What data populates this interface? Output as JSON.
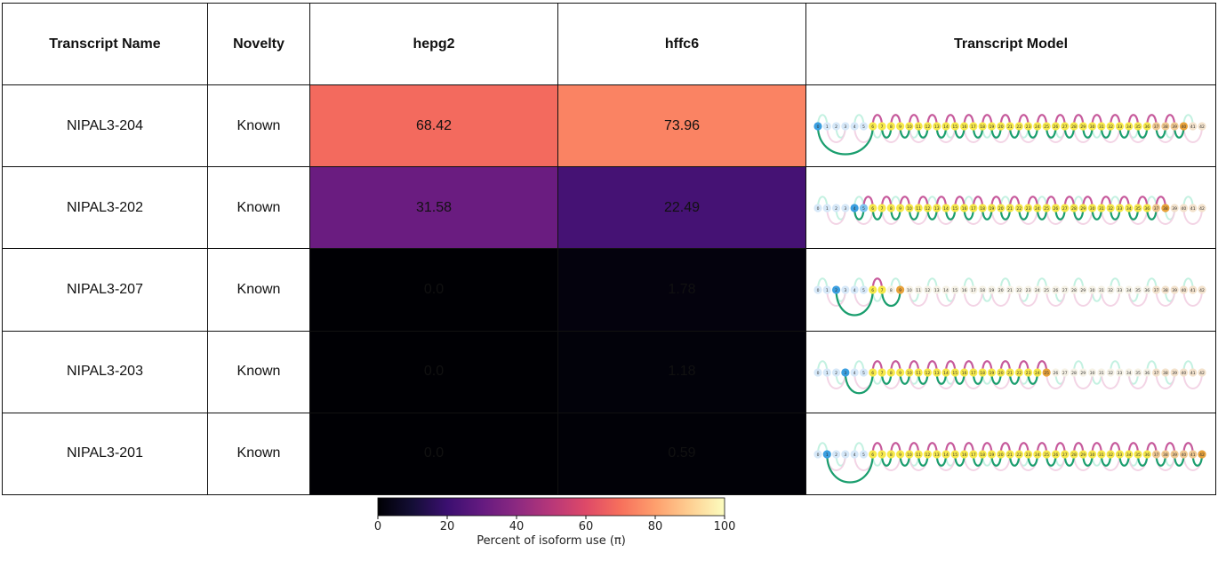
{
  "table": {
    "headers": [
      "Transcript Name",
      "Novelty",
      "hepg2",
      "hffc6",
      "Transcript Model"
    ]
  },
  "chart_data": {
    "type": "heatmap",
    "columns": [
      "hepg2",
      "hffc6"
    ],
    "rows": [
      {
        "transcript": "NIPAL3-204",
        "novelty": "Known",
        "values": [
          68.42,
          73.96
        ],
        "labels": [
          "68.42",
          "73.96"
        ]
      },
      {
        "transcript": "NIPAL3-202",
        "novelty": "Known",
        "values": [
          31.58,
          22.49
        ],
        "labels": [
          "31.58",
          "22.49"
        ]
      },
      {
        "transcript": "NIPAL3-207",
        "novelty": "Known",
        "values": [
          0.0,
          1.78
        ],
        "labels": [
          "0.0",
          "1.78"
        ]
      },
      {
        "transcript": "NIPAL3-203",
        "novelty": "Known",
        "values": [
          0.0,
          1.18
        ],
        "labels": [
          "0.0",
          "1.18"
        ]
      },
      {
        "transcript": "NIPAL3-201",
        "novelty": "Known",
        "values": [
          0.0,
          0.59
        ],
        "labels": [
          "0.0",
          "0.59"
        ]
      }
    ],
    "colorbar": {
      "label": "Percent of isoform use (π)",
      "ticks": [
        "0",
        "20",
        "40",
        "60",
        "80",
        "100"
      ],
      "range": [
        0,
        100
      ],
      "colormap": "magma"
    },
    "nodes": [
      "0",
      "1",
      "2",
      "3",
      "4",
      "5",
      "6",
      "7",
      "8",
      "9",
      "10",
      "11",
      "12",
      "13",
      "14",
      "15",
      "16",
      "17",
      "18",
      "19",
      "20",
      "21",
      "22",
      "23",
      "24",
      "25",
      "26",
      "27",
      "28",
      "29",
      "30",
      "31",
      "32",
      "33",
      "34",
      "35",
      "36",
      "37",
      "38",
      "39",
      "40",
      "41",
      "42"
    ],
    "node_colors": {
      "tss": "#7fc4f0",
      "tss_strong": "#3b9fe0",
      "exon": "#f7e94a",
      "tes": "#f0c890",
      "tes_strong": "#e8a23a",
      "faded_start": "#d6e8f8",
      "faded_end": "#f3e2cc"
    },
    "edge_colors": {
      "exon": "#1a9e6e",
      "intron": "#c75a9c",
      "faded_exon": "#bdf0de",
      "faded_intron": "#f2cfe2"
    },
    "models": [
      {
        "tss": 0,
        "tes": 40,
        "active": [
          0,
          6,
          7,
          8,
          9,
          10,
          11,
          12,
          13,
          14,
          15,
          16,
          17,
          18,
          19,
          20,
          21,
          22,
          23,
          24,
          25,
          26,
          27,
          28,
          29,
          30,
          31,
          32,
          33,
          34,
          35,
          36,
          37,
          38,
          39,
          40
        ]
      },
      {
        "tss": 4,
        "tes": 38,
        "active": [
          4,
          5,
          6,
          7,
          8,
          9,
          10,
          11,
          12,
          13,
          14,
          15,
          16,
          17,
          18,
          19,
          20,
          21,
          22,
          23,
          24,
          25,
          26,
          27,
          28,
          29,
          30,
          31,
          32,
          33,
          34,
          35,
          36,
          37,
          38
        ]
      },
      {
        "tss": 2,
        "tes": 9,
        "active": [
          2,
          6,
          7,
          9
        ]
      },
      {
        "tss": 3,
        "tes": 25,
        "active": [
          3,
          6,
          7,
          8,
          9,
          10,
          11,
          12,
          13,
          14,
          15,
          16,
          17,
          18,
          19,
          20,
          21,
          22,
          23,
          24,
          25
        ]
      },
      {
        "tss": 1,
        "tes": 42,
        "active": [
          1,
          6,
          7,
          8,
          9,
          10,
          11,
          12,
          13,
          14,
          15,
          16,
          17,
          18,
          19,
          20,
          21,
          22,
          23,
          24,
          25,
          26,
          27,
          28,
          29,
          30,
          31,
          32,
          33,
          34,
          35,
          36,
          37,
          38,
          39,
          40,
          41,
          42
        ]
      }
    ]
  }
}
